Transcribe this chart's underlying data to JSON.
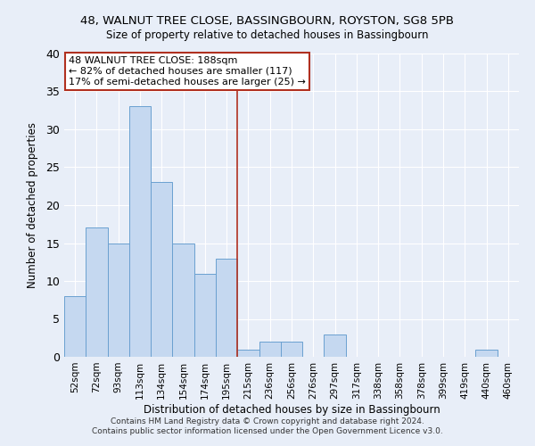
{
  "title1": "48, WALNUT TREE CLOSE, BASSINGBOURN, ROYSTON, SG8 5PB",
  "title2": "Size of property relative to detached houses in Bassingbourn",
  "xlabel": "Distribution of detached houses by size in Bassingbourn",
  "ylabel": "Number of detached properties",
  "footer1": "Contains HM Land Registry data © Crown copyright and database right 2024.",
  "footer2": "Contains public sector information licensed under the Open Government Licence v3.0.",
  "bin_labels": [
    "52sqm",
    "72sqm",
    "93sqm",
    "113sqm",
    "134sqm",
    "154sqm",
    "174sqm",
    "195sqm",
    "215sqm",
    "236sqm",
    "256sqm",
    "276sqm",
    "297sqm",
    "317sqm",
    "338sqm",
    "358sqm",
    "378sqm",
    "399sqm",
    "419sqm",
    "440sqm",
    "460sqm"
  ],
  "bar_values": [
    8,
    17,
    15,
    33,
    23,
    15,
    11,
    13,
    1,
    2,
    2,
    0,
    3,
    0,
    0,
    0,
    0,
    0,
    0,
    1,
    0
  ],
  "bar_color": "#c5d8f0",
  "bar_edgecolor": "#6aa0d0",
  "bg_color": "#e8eef8",
  "grid_color": "#ffffff",
  "vline_x_idx": 7,
  "vline_color": "#b03020",
  "annotation_line1": "48 WALNUT TREE CLOSE: 188sqm",
  "annotation_line2": "← 82% of detached houses are smaller (117)",
  "annotation_line3": "17% of semi-detached houses are larger (25) →",
  "annotation_box_color": "#b03020",
  "ylim": [
    0,
    40
  ],
  "yticks": [
    0,
    5,
    10,
    15,
    20,
    25,
    30,
    35,
    40
  ]
}
